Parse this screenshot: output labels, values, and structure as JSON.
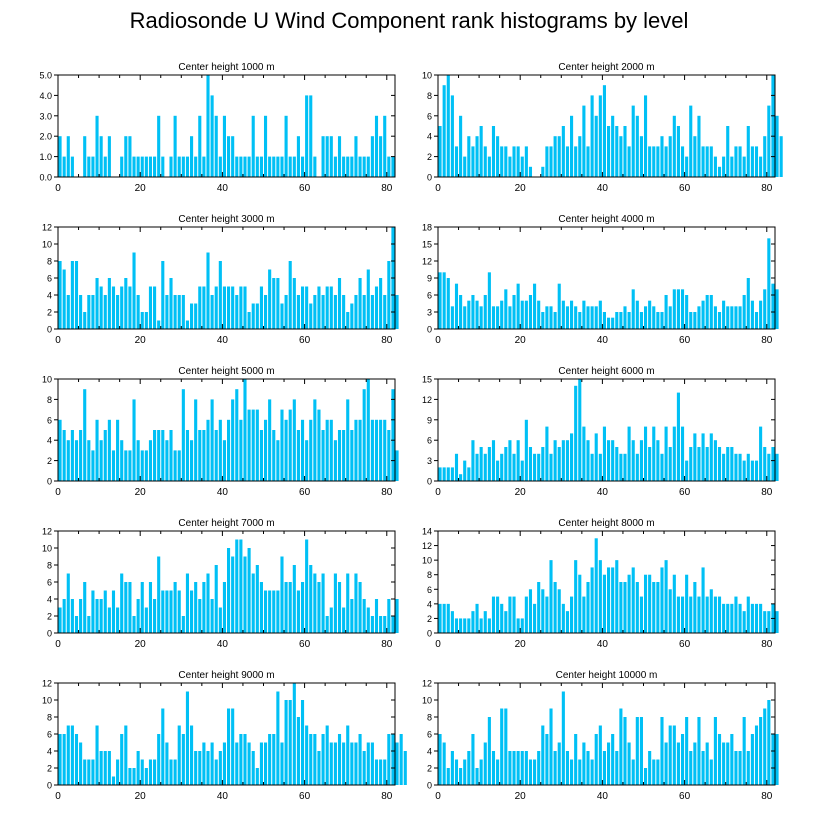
{
  "title": "Radiosonde U Wind Component rank histograms by level",
  "colors": {
    "bar": "#00c0f5",
    "axis": "#000000",
    "background": "#ffffff"
  },
  "chart_data": [
    {
      "type": "bar",
      "title": "Center height 1000 m",
      "xlabel": "",
      "ylabel": "",
      "xlim": [
        0,
        82
      ],
      "ylim": [
        0,
        5
      ],
      "xticks": [
        0,
        20,
        40,
        60,
        80
      ],
      "yticks": [
        0,
        1,
        2,
        3,
        4,
        5
      ],
      "ytick_labels": [
        "0.0",
        "1.0",
        "2.0",
        "3.0",
        "4.0",
        "5.0"
      ],
      "values": [
        2,
        1,
        2,
        1,
        0,
        0,
        2,
        1,
        1,
        3,
        2,
        1,
        2,
        0,
        0,
        1,
        2,
        2,
        1,
        1,
        1,
        1,
        1,
        1,
        3,
        1,
        0,
        1,
        3,
        1,
        1,
        1,
        2,
        1,
        3,
        1,
        5,
        4,
        3,
        1,
        3,
        2,
        2,
        1,
        1,
        1,
        1,
        3,
        1,
        1,
        3,
        1,
        1,
        1,
        1,
        3,
        1,
        1,
        2,
        1,
        4,
        4,
        1,
        0,
        2,
        2,
        2,
        1,
        2,
        1,
        1,
        1,
        2,
        1,
        1,
        1,
        2,
        3,
        2,
        3,
        1,
        1
      ]
    },
    {
      "type": "bar",
      "title": "Center height 2000 m",
      "xlabel": "",
      "ylabel": "",
      "xlim": [
        0,
        82
      ],
      "ylim": [
        0,
        10
      ],
      "xticks": [
        0,
        20,
        40,
        60,
        80
      ],
      "yticks": [
        0,
        2,
        4,
        6,
        8,
        10
      ],
      "ytick_labels": [
        "0",
        "2",
        "4",
        "6",
        "8",
        "10"
      ],
      "values": [
        5,
        9,
        10,
        8,
        3,
        6,
        2,
        4,
        3,
        4,
        5,
        3,
        2,
        5,
        4,
        3,
        3,
        2,
        3,
        3,
        2,
        3,
        1,
        0,
        0,
        1,
        3,
        3,
        4,
        4,
        5,
        3,
        6,
        3,
        4,
        7,
        3,
        8,
        6,
        8,
        9,
        5,
        6,
        5,
        4,
        5,
        3,
        7,
        6,
        4,
        8,
        3,
        3,
        3,
        4,
        3,
        4,
        6,
        5,
        3,
        2,
        7,
        4,
        6,
        3,
        3,
        3,
        2,
        1,
        2,
        5,
        2,
        3,
        3,
        2,
        5,
        3,
        3,
        2,
        4,
        7,
        10,
        6,
        4
      ]
    },
    {
      "type": "bar",
      "title": "Center height 3000 m",
      "xlabel": "",
      "ylabel": "",
      "xlim": [
        0,
        82
      ],
      "ylim": [
        0,
        12
      ],
      "xticks": [
        0,
        20,
        40,
        60,
        80
      ],
      "yticks": [
        0,
        2,
        4,
        6,
        8,
        10,
        12
      ],
      "ytick_labels": [
        "0",
        "2",
        "4",
        "6",
        "8",
        "10",
        "12"
      ],
      "values": [
        8,
        7,
        4,
        8,
        8,
        4,
        2,
        4,
        4,
        6,
        5,
        4,
        6,
        5,
        4,
        5,
        6,
        5,
        9,
        4,
        2,
        2,
        5,
        5,
        1,
        8,
        4,
        6,
        4,
        4,
        4,
        1,
        3,
        3,
        5,
        5,
        9,
        4,
        5,
        8,
        5,
        5,
        5,
        4,
        5,
        5,
        2,
        3,
        3,
        5,
        4,
        7,
        6,
        6,
        3,
        4,
        8,
        6,
        4,
        5,
        5,
        3,
        4,
        5,
        4,
        5,
        5,
        4,
        6,
        4,
        2,
        3,
        4,
        6,
        4,
        7,
        4,
        5,
        6,
        4,
        8,
        12,
        4
      ]
    },
    {
      "type": "bar",
      "title": "Center height 4000 m",
      "xlabel": "",
      "ylabel": "",
      "xlim": [
        0,
        82
      ],
      "ylim": [
        0,
        18
      ],
      "xticks": [
        0,
        20,
        40,
        60,
        80
      ],
      "yticks": [
        0,
        3,
        6,
        9,
        12,
        15,
        18
      ],
      "ytick_labels": [
        "0",
        "3",
        "6",
        "9",
        "12",
        "15",
        "18"
      ],
      "values": [
        10,
        10,
        9,
        4,
        8,
        6,
        4,
        5,
        6,
        5,
        4,
        6,
        10,
        4,
        4,
        5,
        7,
        4,
        6,
        8,
        5,
        5,
        6,
        8,
        5,
        3,
        4,
        4,
        3,
        8,
        5,
        4,
        5,
        4,
        3,
        5,
        4,
        4,
        4,
        5,
        3,
        2,
        2,
        3,
        3,
        4,
        3,
        7,
        5,
        3,
        4,
        5,
        4,
        3,
        3,
        6,
        4,
        7,
        7,
        7,
        6,
        3,
        3,
        4,
        5,
        6,
        6,
        4,
        3,
        5,
        4,
        4,
        4,
        4,
        6,
        9,
        5,
        3,
        5,
        7,
        16,
        8,
        7
      ]
    },
    {
      "type": "bar",
      "title": "Center height 5000 m",
      "xlabel": "",
      "ylabel": "",
      "xlim": [
        0,
        82
      ],
      "ylim": [
        0,
        10
      ],
      "xticks": [
        0,
        20,
        40,
        60,
        80
      ],
      "yticks": [
        0,
        2,
        4,
        6,
        8,
        10
      ],
      "ytick_labels": [
        "0",
        "2",
        "4",
        "6",
        "8",
        "10"
      ],
      "values": [
        6,
        5,
        4,
        5,
        4,
        5,
        9,
        4,
        3,
        6,
        4,
        5,
        6,
        3,
        6,
        4,
        3,
        3,
        8,
        4,
        3,
        3,
        4,
        5,
        5,
        5,
        4,
        5,
        3,
        3,
        9,
        5,
        4,
        8,
        5,
        5,
        6,
        8,
        5,
        6,
        4,
        6,
        8,
        9,
        6,
        10,
        7,
        7,
        7,
        5,
        6,
        8,
        5,
        4,
        7,
        6,
        7,
        8,
        5,
        6,
        4,
        6,
        8,
        7,
        5,
        6,
        6,
        4,
        5,
        5,
        8,
        5,
        6,
        6,
        9,
        10,
        6,
        6,
        6,
        6,
        5,
        9,
        3
      ]
    },
    {
      "type": "bar",
      "title": "Center height 6000 m",
      "xlabel": "",
      "ylabel": "",
      "xlim": [
        0,
        82
      ],
      "ylim": [
        0,
        15
      ],
      "xticks": [
        0,
        20,
        40,
        60,
        80
      ],
      "yticks": [
        0,
        3,
        6,
        9,
        12,
        15
      ],
      "ytick_labels": [
        "0",
        "3",
        "6",
        "9",
        "12",
        "15"
      ],
      "values": [
        2,
        2,
        2,
        2,
        4,
        1,
        3,
        2,
        6,
        4,
        5,
        4,
        5,
        6,
        3,
        4,
        5,
        6,
        4,
        6,
        3,
        9,
        5,
        4,
        4,
        5,
        8,
        4,
        6,
        5,
        6,
        6,
        7,
        14,
        15,
        8,
        6,
        4,
        7,
        4,
        8,
        6,
        6,
        5,
        4,
        4,
        8,
        6,
        4,
        6,
        8,
        5,
        8,
        6,
        4,
        8,
        5,
        8,
        13,
        8,
        3,
        5,
        7,
        5,
        7,
        5,
        7,
        6,
        5,
        4,
        5,
        5,
        4,
        4,
        3,
        4,
        3,
        3,
        8,
        5,
        4,
        5,
        4
      ]
    },
    {
      "type": "bar",
      "title": "Center height 7000 m",
      "xlabel": "",
      "ylabel": "",
      "xlim": [
        0,
        82
      ],
      "ylim": [
        0,
        12
      ],
      "xticks": [
        0,
        20,
        40,
        60,
        80
      ],
      "yticks": [
        0,
        2,
        4,
        6,
        8,
        10,
        12
      ],
      "ytick_labels": [
        "0",
        "2",
        "4",
        "6",
        "8",
        "10",
        "12"
      ],
      "values": [
        3,
        4,
        7,
        4,
        2,
        4,
        6,
        2,
        5,
        4,
        4,
        5,
        3,
        5,
        3,
        7,
        6,
        6,
        2,
        4,
        6,
        3,
        6,
        4,
        9,
        5,
        5,
        5,
        6,
        5,
        2,
        7,
        5,
        6,
        4,
        6,
        7,
        4,
        8,
        3,
        6,
        10,
        9,
        11,
        11,
        9,
        10,
        7,
        8,
        6,
        5,
        5,
        5,
        5,
        9,
        6,
        6,
        8,
        5,
        6,
        11,
        8,
        7,
        6,
        7,
        2,
        3,
        7,
        6,
        3,
        7,
        4,
        7,
        6,
        4,
        3,
        2,
        4,
        2,
        2,
        4,
        2,
        4
      ]
    },
    {
      "type": "bar",
      "title": "Center height 8000 m",
      "xlabel": "",
      "ylabel": "",
      "xlim": [
        0,
        82
      ],
      "ylim": [
        0,
        14
      ],
      "xticks": [
        0,
        20,
        40,
        60,
        80
      ],
      "yticks": [
        0,
        2,
        4,
        6,
        8,
        10,
        12,
        14
      ],
      "ytick_labels": [
        "0",
        "2",
        "4",
        "6",
        "8",
        "10",
        "12",
        "14"
      ],
      "values": [
        4,
        4,
        4,
        3,
        2,
        2,
        2,
        2,
        3,
        4,
        2,
        3,
        2,
        5,
        5,
        4,
        3,
        5,
        5,
        2,
        2,
        5,
        6,
        4,
        7,
        6,
        5,
        10,
        7,
        6,
        4,
        3,
        5,
        10,
        8,
        5,
        7,
        9,
        13,
        10,
        8,
        9,
        9,
        10,
        7,
        7,
        8,
        9,
        7,
        5,
        8,
        8,
        7,
        7,
        9,
        10,
        6,
        8,
        5,
        5,
        8,
        5,
        7,
        5,
        9,
        5,
        6,
        5,
        5,
        4,
        4,
        4,
        5,
        4,
        3,
        5,
        4,
        4,
        4,
        3,
        3,
        4,
        3
      ]
    },
    {
      "type": "bar",
      "title": "Center height 9000 m",
      "xlabel": "",
      "ylabel": "",
      "xlim": [
        0,
        82
      ],
      "ylim": [
        0,
        12
      ],
      "xticks": [
        0,
        20,
        40,
        60,
        80
      ],
      "yticks": [
        0,
        2,
        4,
        6,
        8,
        10,
        12
      ],
      "ytick_labels": [
        "0",
        "2",
        "4",
        "6",
        "8",
        "10",
        "12"
      ],
      "values": [
        6,
        6,
        7,
        7,
        6,
        5,
        3,
        3,
        3,
        7,
        4,
        4,
        4,
        1,
        3,
        6,
        7,
        2,
        2,
        4,
        3,
        2,
        3,
        3,
        6,
        9,
        5,
        3,
        3,
        7,
        6,
        11,
        7,
        4,
        4,
        5,
        4,
        5,
        3,
        4,
        5,
        9,
        9,
        5,
        6,
        6,
        5,
        4,
        2,
        5,
        5,
        6,
        6,
        11,
        5,
        10,
        10,
        12,
        8,
        10,
        7,
        6,
        6,
        4,
        6,
        7,
        5,
        5,
        6,
        5,
        7,
        5,
        5,
        6,
        4,
        5,
        5,
        3,
        3,
        3,
        6,
        6,
        5,
        6,
        4
      ]
    },
    {
      "type": "bar",
      "title": "Center height 10000 m",
      "xlabel": "",
      "ylabel": "",
      "xlim": [
        0,
        82
      ],
      "ylim": [
        0,
        12
      ],
      "xticks": [
        0,
        20,
        40,
        60,
        80
      ],
      "yticks": [
        0,
        2,
        4,
        6,
        8,
        10,
        12
      ],
      "ytick_labels": [
        "0",
        "2",
        "4",
        "6",
        "8",
        "10",
        "12"
      ],
      "values": [
        6,
        5,
        2,
        4,
        3,
        2,
        3,
        4,
        6,
        2,
        3,
        5,
        8,
        4,
        3,
        9,
        9,
        4,
        4,
        4,
        4,
        4,
        3,
        3,
        4,
        7,
        6,
        9,
        4,
        5,
        11,
        4,
        3,
        6,
        3,
        5,
        4,
        3,
        6,
        7,
        4,
        5,
        6,
        4,
        9,
        8,
        5,
        3,
        8,
        8,
        2,
        4,
        3,
        3,
        8,
        5,
        7,
        7,
        5,
        6,
        8,
        4,
        5,
        8,
        4,
        5,
        3,
        8,
        6,
        5,
        5,
        6,
        4,
        4,
        8,
        4,
        6,
        7,
        8,
        9,
        10,
        6,
        6
      ]
    }
  ]
}
